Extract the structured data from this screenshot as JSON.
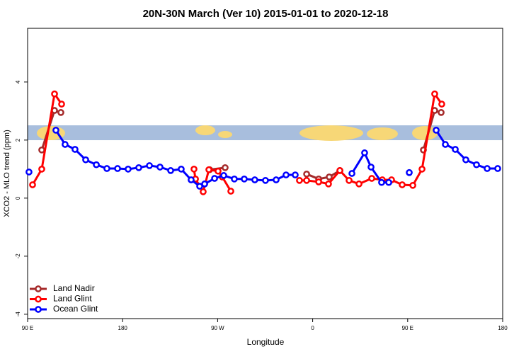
{
  "chart_data": {
    "type": "line",
    "title": "20N-30N March (Ver 10)   2015-01-01 to 2020-12-18",
    "x_label": "Longitude",
    "y_label": "XCO2 - MLO trend (ppm)",
    "xlim": [
      90,
      540
    ],
    "ylim": [
      -4.15,
      5.85
    ],
    "xticks": [
      {
        "value": 90,
        "label": "90 E"
      },
      180,
      {
        "value": 270,
        "label": "90 W"
      },
      {
        "value": 360,
        "label": "0"
      },
      {
        "value": 450,
        "label": "90 E"
      },
      {
        "value": 540,
        "label": "180"
      }
    ],
    "yticks": [
      -4,
      -2,
      0,
      2,
      4
    ],
    "legend": "bottom-left",
    "series": [
      {
        "name": "Land Nadir",
        "color": "#a52a2a",
        "x": [
          103.4,
          115.5,
          121.5,
          null,
          262.4,
          277.1,
          null,
          354.3,
          365.7,
          375.7,
          385.8,
          null,
          464.9,
          475.6,
          481.7
        ],
        "values": [
          1.66,
          3.02,
          2.95,
          null,
          0.98,
          1.05,
          null,
          0.83,
          0.66,
          0.73,
          0.95,
          null,
          1.66,
          3.02,
          2.95
        ]
      },
      {
        "name": "Land Glint",
        "color": "#ff0000",
        "x": [
          94.7,
          103.4,
          115.5,
          122.2,
          null,
          247.6,
          249.0,
          256.3,
          261.7,
          270.4,
          274.4,
          282.5,
          null,
          347.5,
          354.3,
          365.7,
          375.0,
          385.8,
          394.5,
          403.9,
          416.0,
          426.0,
          434.7,
          444.8,
          454.9,
          463.6,
          475.6,
          482.3
        ],
        "values": [
          0.46,
          1.0,
          3.59,
          3.24,
          null,
          1.0,
          0.66,
          0.22,
          0.98,
          0.93,
          0.73,
          0.24,
          null,
          0.61,
          0.61,
          0.56,
          0.49,
          0.95,
          0.61,
          0.49,
          0.68,
          0.63,
          0.63,
          0.46,
          0.44,
          1.0,
          3.59,
          3.24
        ]
      },
      {
        "name": "Ocean Glint",
        "color": "#0000ff",
        "x": [
          91.3,
          null,
          116.8,
          125.5,
          134.9,
          145.0,
          155.1,
          165.1,
          175.2,
          185.2,
          195.3,
          205.4,
          215.4,
          225.5,
          235.5,
          244.9,
          253.0,
          257.7,
          267.1,
          275.8,
          285.8,
          295.2,
          305.2,
          315.3,
          325.4,
          334.8,
          343.5,
          null,
          397.2,
          409.2,
          415.3,
          425.3,
          432.1,
          null,
          451.5,
          null,
          477.0,
          485.7,
          495.1,
          505.1,
          515.2,
          525.3,
          535.3
        ],
        "values": [
          0.9,
          null,
          2.34,
          1.85,
          1.68,
          1.32,
          1.15,
          1.02,
          1.02,
          1.0,
          1.05,
          1.12,
          1.07,
          0.95,
          1.0,
          0.63,
          0.41,
          0.49,
          0.68,
          0.78,
          0.66,
          0.66,
          0.63,
          0.61,
          0.63,
          0.8,
          0.8,
          null,
          0.85,
          1.56,
          1.07,
          0.54,
          0.54,
          null,
          0.88,
          null,
          2.34,
          1.85,
          1.68,
          1.32,
          1.15,
          1.02,
          1.02
        ]
      }
    ]
  }
}
